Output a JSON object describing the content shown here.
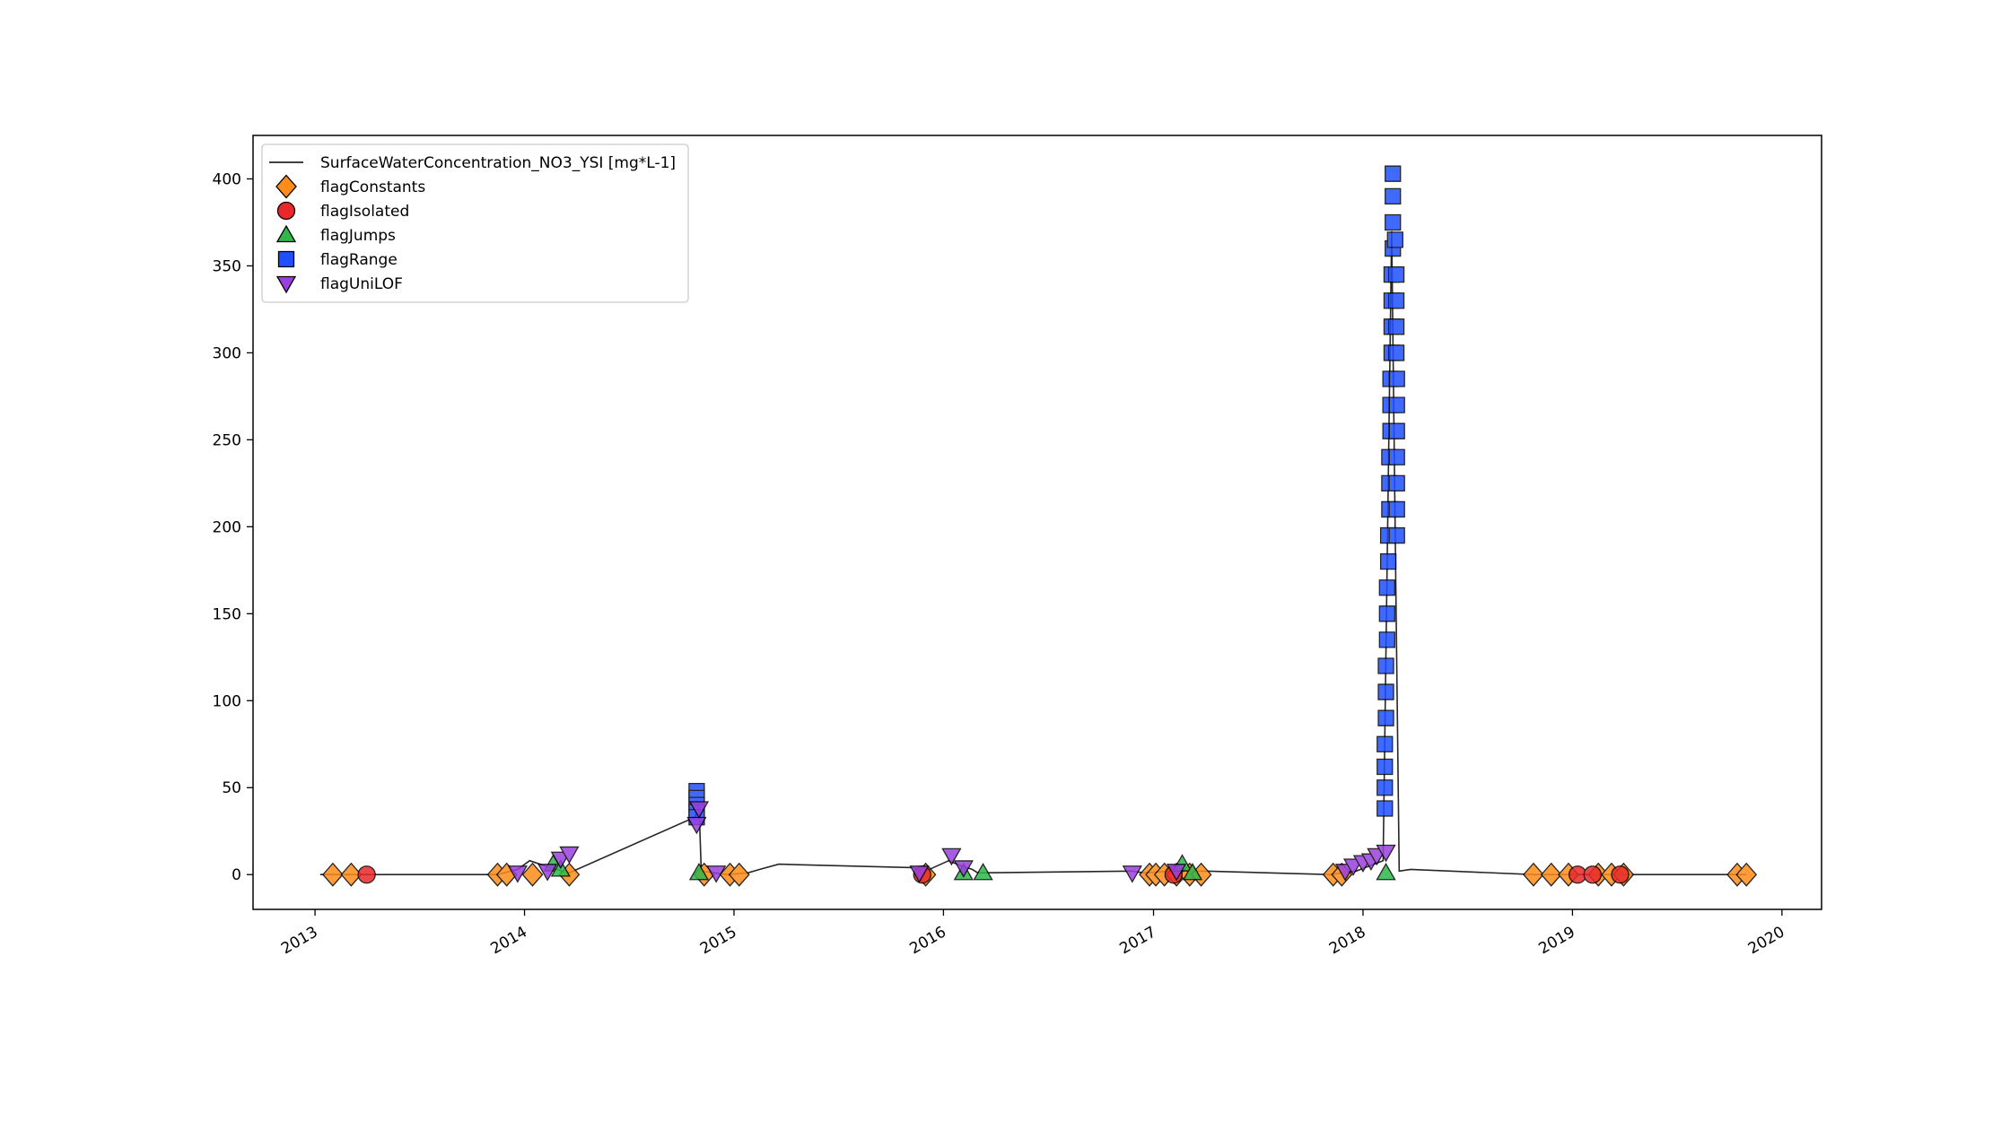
{
  "chart_data": {
    "type": "line",
    "title": "",
    "xlabel": "",
    "ylabel": "",
    "x_axis": {
      "kind": "date",
      "range": [
        "2012-09-15",
        "2020-03-10"
      ],
      "tick_labels": [
        "2013",
        "2014",
        "2015",
        "2016",
        "2017",
        "2018",
        "2019",
        "2020"
      ],
      "tick_dates": [
        "2013-01-01",
        "2014-01-01",
        "2015-01-01",
        "2016-01-01",
        "2017-01-01",
        "2018-01-01",
        "2019-01-01",
        "2020-01-01"
      ]
    },
    "y_axis": {
      "range": [
        -20,
        425
      ],
      "ticks": [
        0,
        50,
        100,
        150,
        200,
        250,
        300,
        350,
        400
      ],
      "tick_labels": [
        "0",
        "50",
        "100",
        "150",
        "200",
        "250",
        "300",
        "350",
        "400"
      ]
    },
    "grid": false,
    "legend_position": "top-left",
    "colors": {
      "line": "#000000",
      "flagConstants": "#ff8c1a",
      "flagIsolated": "#e8282a",
      "flagJumps": "#2eb84a",
      "flagRange": "#1f4fff",
      "flagUniLOF": "#9b3fe0"
    },
    "series": [
      {
        "name": "SurfaceWaterConcentration_NO3_YSI [mg*L-1]",
        "kind": "line",
        "points": [
          [
            "2013-01-10",
            0
          ],
          [
            "2013-04-01",
            0
          ],
          [
            "2013-11-15",
            0
          ],
          [
            "2013-12-20",
            3
          ],
          [
            "2014-01-10",
            8
          ],
          [
            "2014-02-15",
            4
          ],
          [
            "2014-03-20",
            1
          ],
          [
            "2014-10-25",
            33
          ],
          [
            "2014-11-01",
            40
          ],
          [
            "2014-11-05",
            2
          ],
          [
            "2014-12-20",
            0
          ],
          [
            "2015-01-25",
            1
          ],
          [
            "2015-02-15",
            3
          ],
          [
            "2015-03-20",
            6
          ],
          [
            "2015-11-10",
            4
          ],
          [
            "2015-12-01",
            2
          ],
          [
            "2016-01-10",
            8
          ],
          [
            "2016-02-01",
            5
          ],
          [
            "2016-02-20",
            3
          ],
          [
            "2016-03-01",
            1
          ],
          [
            "2016-11-25",
            2
          ],
          [
            "2016-12-15",
            1
          ],
          [
            "2017-02-01",
            2
          ],
          [
            "2017-04-01",
            2
          ],
          [
            "2017-11-05",
            0
          ],
          [
            "2017-12-20",
            2
          ],
          [
            "2018-02-05",
            8
          ],
          [
            "2018-02-20",
            370
          ],
          [
            "2018-03-05",
            2
          ],
          [
            "2018-03-25",
            3
          ],
          [
            "2018-10-25",
            0
          ],
          [
            "2019-03-31",
            0
          ],
          [
            "2019-10-20",
            0
          ],
          [
            "2019-10-31",
            0
          ]
        ]
      },
      {
        "name": "flagConstants",
        "kind": "scatter",
        "marker": "diamond",
        "points": [
          [
            "2013-02-01",
            0
          ],
          [
            "2013-03-05",
            0
          ],
          [
            "2013-11-15",
            0
          ],
          [
            "2013-12-01",
            0
          ],
          [
            "2014-01-15",
            0
          ],
          [
            "2014-03-20",
            0
          ],
          [
            "2014-11-10",
            0
          ],
          [
            "2014-12-25",
            0
          ],
          [
            "2015-01-10",
            0
          ],
          [
            "2015-12-01",
            0
          ],
          [
            "2016-12-25",
            0
          ],
          [
            "2017-01-05",
            0
          ],
          [
            "2017-01-20",
            0
          ],
          [
            "2017-02-10",
            0
          ],
          [
            "2017-03-05",
            0
          ],
          [
            "2017-03-25",
            0
          ],
          [
            "2017-11-10",
            0
          ],
          [
            "2017-11-25",
            0
          ],
          [
            "2018-10-25",
            0
          ],
          [
            "2018-11-25",
            0
          ],
          [
            "2018-12-25",
            0
          ],
          [
            "2019-02-15",
            0
          ],
          [
            "2019-03-10",
            0
          ],
          [
            "2019-03-31",
            0
          ],
          [
            "2019-10-15",
            0
          ],
          [
            "2019-10-31",
            0
          ]
        ]
      },
      {
        "name": "flagIsolated",
        "kind": "scatter",
        "marker": "circle",
        "points": [
          [
            "2013-04-01",
            0
          ],
          [
            "2015-11-25",
            0
          ],
          [
            "2017-02-05",
            0
          ],
          [
            "2019-01-10",
            0
          ],
          [
            "2019-02-05",
            0
          ],
          [
            "2019-03-25",
            0
          ]
        ]
      },
      {
        "name": "flagJumps",
        "kind": "scatter",
        "marker": "triangle-up",
        "points": [
          [
            "2014-02-20",
            6
          ],
          [
            "2014-03-05",
            3
          ],
          [
            "2014-11-01",
            1
          ],
          [
            "2016-02-05",
            1
          ],
          [
            "2016-03-10",
            1
          ],
          [
            "2017-02-20",
            6
          ],
          [
            "2017-03-10",
            1
          ],
          [
            "2018-02-10",
            1
          ]
        ]
      },
      {
        "name": "flagRange",
        "kind": "scatter",
        "marker": "square",
        "points": [
          [
            "2014-10-28",
            48
          ],
          [
            "2014-10-28",
            44
          ],
          [
            "2014-10-28",
            40
          ],
          [
            "2014-10-28",
            36
          ],
          [
            "2014-10-28",
            33
          ],
          [
            "2018-02-08",
            38
          ],
          [
            "2018-02-08",
            50
          ],
          [
            "2018-02-08",
            62
          ],
          [
            "2018-02-08",
            75
          ],
          [
            "2018-02-10",
            90
          ],
          [
            "2018-02-10",
            105
          ],
          [
            "2018-02-10",
            120
          ],
          [
            "2018-02-12",
            135
          ],
          [
            "2018-02-12",
            150
          ],
          [
            "2018-02-12",
            165
          ],
          [
            "2018-02-14",
            180
          ],
          [
            "2018-02-14",
            195
          ],
          [
            "2018-02-16",
            210
          ],
          [
            "2018-02-16",
            225
          ],
          [
            "2018-02-16",
            240
          ],
          [
            "2018-02-18",
            255
          ],
          [
            "2018-02-18",
            270
          ],
          [
            "2018-02-18",
            285
          ],
          [
            "2018-02-20",
            300
          ],
          [
            "2018-02-20",
            315
          ],
          [
            "2018-02-20",
            330
          ],
          [
            "2018-02-20",
            345
          ],
          [
            "2018-02-22",
            360
          ],
          [
            "2018-02-22",
            375
          ],
          [
            "2018-02-22",
            390
          ],
          [
            "2018-02-22",
            403
          ],
          [
            "2018-02-26",
            365
          ],
          [
            "2018-02-28",
            345
          ],
          [
            "2018-02-28",
            330
          ],
          [
            "2018-02-28",
            315
          ],
          [
            "2018-02-28",
            300
          ],
          [
            "2018-03-01",
            285
          ],
          [
            "2018-03-01",
            270
          ],
          [
            "2018-03-01",
            255
          ],
          [
            "2018-03-01",
            240
          ],
          [
            "2018-03-01",
            225
          ],
          [
            "2018-03-01",
            210
          ],
          [
            "2018-03-01",
            195
          ]
        ]
      },
      {
        "name": "flagUniLOF",
        "kind": "scatter",
        "marker": "triangle-down",
        "points": [
          [
            "2013-12-20",
            1
          ],
          [
            "2014-02-10",
            2
          ],
          [
            "2014-03-05",
            9
          ],
          [
            "2014-03-20",
            12
          ],
          [
            "2014-10-28",
            29
          ],
          [
            "2014-11-01",
            38
          ],
          [
            "2014-12-01",
            1
          ],
          [
            "2015-11-20",
            1
          ],
          [
            "2016-01-15",
            11
          ],
          [
            "2016-02-05",
            4
          ],
          [
            "2016-11-25",
            1
          ],
          [
            "2017-02-10",
            2
          ],
          [
            "2017-12-01",
            2
          ],
          [
            "2017-12-15",
            5
          ],
          [
            "2018-01-01",
            7
          ],
          [
            "2018-01-15",
            8
          ],
          [
            "2018-01-25",
            11
          ],
          [
            "2018-02-10",
            13
          ]
        ]
      }
    ]
  }
}
